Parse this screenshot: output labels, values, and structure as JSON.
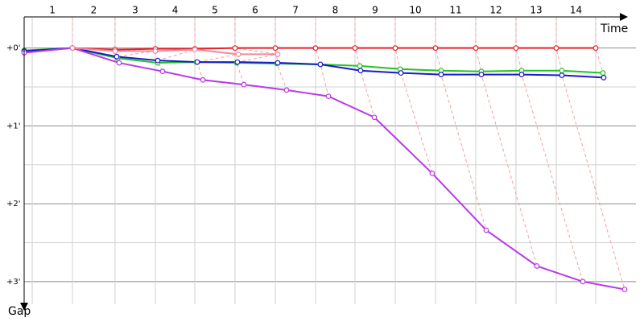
{
  "chart_data": {
    "type": "line",
    "x_label": "Time",
    "y_label": "Gap",
    "categories": [
      "1",
      "2",
      "3",
      "4",
      "5",
      "6",
      "7",
      "8",
      "9",
      "10",
      "11",
      "12",
      "13",
      "14"
    ],
    "xlim": [
      0,
      7.9
    ],
    "xticks": [
      0.104,
      0.622,
      1.171,
      1.69,
      2.198,
      2.716,
      3.235,
      3.753,
      4.261,
      4.779,
      5.298,
      5.816,
      6.334,
      6.853,
      7.361
    ],
    "ylim": [
      -0.4,
      3.25
    ],
    "yticks": [
      {
        "value": 0,
        "label": "+0'"
      },
      {
        "value": 1,
        "label": "+1'"
      },
      {
        "value": 2,
        "label": "+2'"
      },
      {
        "value": 3,
        "label": "+3'"
      }
    ],
    "minor_yticks": [
      0.5,
      1.5,
      2.5
    ],
    "y_inverted": true,
    "series": [
      {
        "color": "#e8232a",
        "x": [
          0,
          0.622,
          1.171,
          1.69,
          2.198,
          2.716,
          3.235,
          3.753,
          4.261,
          4.779,
          5.298,
          5.816,
          6.334,
          6.853,
          7.361
        ],
        "values": [
          0.04,
          0,
          0.02,
          0.01,
          0.01,
          0,
          0,
          0,
          0,
          0,
          0,
          0,
          0,
          0,
          0
        ]
      },
      {
        "color": "#22c422",
        "x": [
          0,
          0.622,
          1.203,
          1.721,
          2.219,
          2.737,
          3.255,
          3.815,
          4.323,
          4.841,
          5.37,
          5.888,
          6.407,
          6.925,
          7.454
        ],
        "values": [
          0.03,
          0,
          0.13,
          0.19,
          0.18,
          0.19,
          0.2,
          0.21,
          0.23,
          0.27,
          0.29,
          0.3,
          0.29,
          0.29,
          0.32
        ]
      },
      {
        "color": "#1a1acc",
        "x": [
          0,
          0.622,
          1.192,
          1.721,
          2.229,
          2.747,
          3.266,
          3.815,
          4.333,
          4.852,
          5.37,
          5.888,
          6.407,
          6.925,
          7.464
        ],
        "values": [
          0.04,
          0,
          0.11,
          0.16,
          0.18,
          0.18,
          0.19,
          0.21,
          0.29,
          0.32,
          0.34,
          0.34,
          0.34,
          0.35,
          0.38
        ]
      },
      {
        "color": "#b83ae8",
        "x": [
          0,
          0.622,
          1.223,
          1.783,
          2.302,
          2.83,
          3.38,
          3.919,
          4.51,
          5.256,
          5.951,
          6.604,
          7.195,
          7.734
        ],
        "values": [
          0.06,
          0,
          0.19,
          0.3,
          0.41,
          0.47,
          0.54,
          0.62,
          0.89,
          1.61,
          2.34,
          2.8,
          3.0,
          3.1
        ]
      },
      {
        "color": "#f08aa0",
        "x": [
          0.622,
          1.171,
          1.69,
          2.198,
          2.758,
          3.266
        ],
        "values": [
          0,
          0.04,
          0.04,
          0.02,
          0.08,
          0.08
        ]
      }
    ]
  }
}
